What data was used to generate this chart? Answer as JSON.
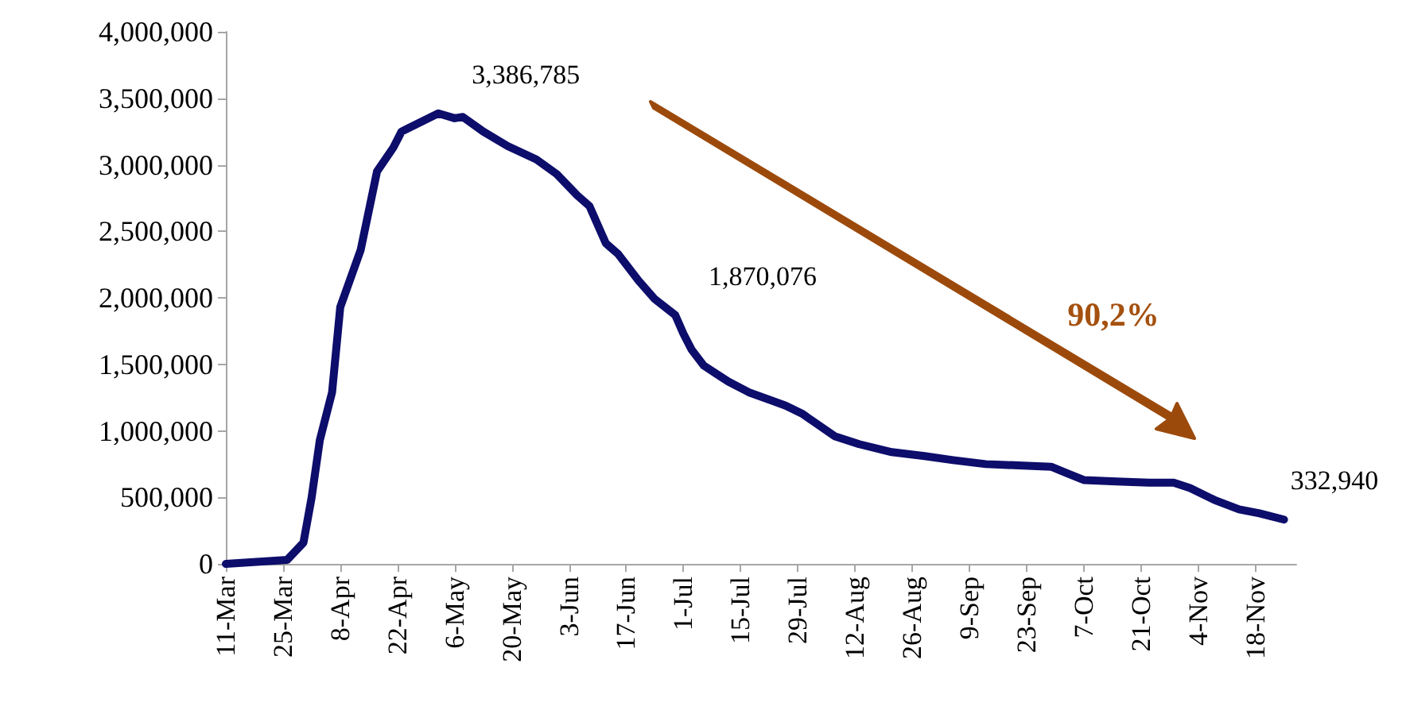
{
  "chart_data": {
    "type": "line",
    "x": [
      "--03-11",
      "--03-26",
      "--03-30",
      "--04-01",
      "--04-03",
      "--04-06",
      "--04-08",
      "--04-13",
      "--04-17",
      "--04-21",
      "--04-23",
      "--05-02",
      "--05-06",
      "--05-08",
      "--05-13",
      "--05-19",
      "--05-26",
      "--05-31",
      "--06-05",
      "--06-08",
      "--06-12",
      "--06-15",
      "--06-20",
      "--06-24",
      "--06-29",
      "--07-01",
      "--07-03",
      "--07-06",
      "--07-09",
      "--07-12",
      "--07-17",
      "--07-26",
      "--07-30",
      "--08-07",
      "--08-13",
      "--08-21",
      "--08-29",
      "--09-05",
      "--09-13",
      "--09-21",
      "--09-29",
      "--10-03",
      "--10-07",
      "--10-15",
      "--10-23",
      "--10-29",
      "--11-02",
      "--11-08",
      "--11-14",
      "--11-19",
      "--11-25"
    ],
    "series": [
      {
        "color": "#0d0d6b",
        "values": [
          0,
          30000,
          160000,
          500000,
          930000,
          1290000,
          1930000,
          2360000,
          2950000,
          3130000,
          3250000,
          3386785,
          3350000,
          3360000,
          3250000,
          3140000,
          3040000,
          2930000,
          2770000,
          2690000,
          2410000,
          2330000,
          2130000,
          1990000,
          1870076,
          1730000,
          1610000,
          1490000,
          1430000,
          1370000,
          1290000,
          1190000,
          1130000,
          960000,
          900000,
          840000,
          810000,
          780000,
          750000,
          740000,
          730000,
          680000,
          630000,
          620000,
          610000,
          610000,
          570000,
          480000,
          410000,
          380000,
          332940
        ]
      }
    ],
    "xlim": [
      "--03-11",
      "--11-28"
    ],
    "xticks": [
      {
        "value": "--03-11",
        "label": "11-Mar"
      },
      {
        "value": "--03-25",
        "label": "25-Mar"
      },
      {
        "value": "--04-08",
        "label": "8-Apr"
      },
      {
        "value": "--04-22",
        "label": "22-Apr"
      },
      {
        "value": "--05-06",
        "label": "6-May"
      },
      {
        "value": "--05-20",
        "label": "20-May"
      },
      {
        "value": "--06-03",
        "label": "3-Jun"
      },
      {
        "value": "--06-17",
        "label": "17-Jun"
      },
      {
        "value": "--07-01",
        "label": "1-Jul"
      },
      {
        "value": "--07-15",
        "label": "15-Jul"
      },
      {
        "value": "--07-29",
        "label": "29-Jul"
      },
      {
        "value": "--08-12",
        "label": "12-Aug"
      },
      {
        "value": "--08-26",
        "label": "26-Aug"
      },
      {
        "value": "--09-09",
        "label": "9-Sep"
      },
      {
        "value": "--09-23",
        "label": "23-Sep"
      },
      {
        "value": "--10-07",
        "label": "7-Oct"
      },
      {
        "value": "--10-21",
        "label": "21-Oct"
      },
      {
        "value": "--11-04",
        "label": "4-Nov"
      },
      {
        "value": "--11-18",
        "label": "18-Nov"
      }
    ],
    "ylim": [
      0,
      4000000
    ],
    "yticks": [
      {
        "value": 0,
        "label": "0"
      },
      {
        "value": 500000,
        "label": "500,000"
      },
      {
        "value": 1000000,
        "label": "1,000,000"
      },
      {
        "value": 1500000,
        "label": "1,500,000"
      },
      {
        "value": 2000000,
        "label": "2,000,000"
      },
      {
        "value": 2500000,
        "label": "2,500,000"
      },
      {
        "value": 3000000,
        "label": "3,000,000"
      },
      {
        "value": 3500000,
        "label": "3,500,000"
      },
      {
        "value": 4000000,
        "label": "4,000,000"
      }
    ],
    "grid": false,
    "marker": "none",
    "line_style": "solid",
    "annotations": [
      {
        "text": "3,386,785",
        "x": "--05-02",
        "y": 3386785
      },
      {
        "text": "1,870,076",
        "x": "--06-29",
        "y": 1870076
      },
      {
        "text": "332,940",
        "x": "--11-25",
        "y": 332940
      },
      "90,2%"
    ]
  }
}
